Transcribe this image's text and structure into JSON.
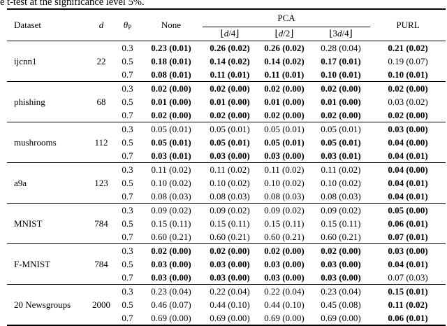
{
  "caption": "e t-test at the significance level 5%.",
  "table": {
    "headers": {
      "dataset": "Dataset",
      "d": "d",
      "theta": {
        "symbol": "θ",
        "sub": "P"
      },
      "none": "None",
      "pca": "PCA",
      "pca_sub": [
        {
          "pre": "⌊",
          "var": "d",
          "post": "/4⌋"
        },
        {
          "pre": "⌊",
          "var": "d",
          "post": "/2⌋"
        },
        {
          "pre": "⌊3",
          "var": "d",
          "post": "/4⌋"
        }
      ],
      "purl": "PURL"
    },
    "column_semantics": [
      "cell-none",
      "cell-pca-d4",
      "cell-pca-d2",
      "cell-pca-3d4",
      "cell-purl"
    ],
    "groups": [
      {
        "dataset": "ijcnn1",
        "d": "22",
        "rows": [
          {
            "theta": "0.3",
            "cells": [
              [
                "0.23 (0.01)",
                1
              ],
              [
                "0.26 (0.02)",
                1
              ],
              [
                "0.26 (0.02)",
                1
              ],
              [
                "0.28 (0.04)",
                0
              ],
              [
                "0.21 (0.02)",
                1
              ]
            ]
          },
          {
            "theta": "0.5",
            "cells": [
              [
                "0.18 (0.01)",
                1
              ],
              [
                "0.14 (0.02)",
                1
              ],
              [
                "0.14 (0.02)",
                1
              ],
              [
                "0.17 (0.01)",
                1
              ],
              [
                "0.19 (0.07)",
                0
              ]
            ]
          },
          {
            "theta": "0.7",
            "cells": [
              [
                "0.08 (0.01)",
                1
              ],
              [
                "0.11 (0.01)",
                1
              ],
              [
                "0.11 (0.01)",
                1
              ],
              [
                "0.10 (0.01)",
                1
              ],
              [
                "0.10 (0.01)",
                1
              ]
            ]
          }
        ]
      },
      {
        "dataset": "phishing",
        "d": "68",
        "rows": [
          {
            "theta": "0.3",
            "cells": [
              [
                "0.02 (0.00)",
                1
              ],
              [
                "0.02 (0.00)",
                1
              ],
              [
                "0.02 (0.00)",
                1
              ],
              [
                "0.02 (0.00)",
                1
              ],
              [
                "0.02 (0.00)",
                1
              ]
            ]
          },
          {
            "theta": "0.5",
            "cells": [
              [
                "0.01 (0.00)",
                1
              ],
              [
                "0.01 (0.00)",
                1
              ],
              [
                "0.01 (0.00)",
                1
              ],
              [
                "0.01 (0.00)",
                1
              ],
              [
                "0.03 (0.02)",
                0
              ]
            ]
          },
          {
            "theta": "0.7",
            "cells": [
              [
                "0.02 (0.00)",
                1
              ],
              [
                "0.02 (0.00)",
                1
              ],
              [
                "0.02 (0.00)",
                1
              ],
              [
                "0.02 (0.00)",
                1
              ],
              [
                "0.02 (0.00)",
                1
              ]
            ]
          }
        ]
      },
      {
        "dataset": "mushrooms",
        "d": "112",
        "rows": [
          {
            "theta": "0.3",
            "cells": [
              [
                "0.05 (0.01)",
                0
              ],
              [
                "0.05 (0.01)",
                0
              ],
              [
                "0.05 (0.01)",
                0
              ],
              [
                "0.05 (0.01)",
                0
              ],
              [
                "0.03 (0.00)",
                1
              ]
            ]
          },
          {
            "theta": "0.5",
            "cells": [
              [
                "0.05 (0.01)",
                1
              ],
              [
                "0.05 (0.01)",
                1
              ],
              [
                "0.05 (0.01)",
                1
              ],
              [
                "0.05 (0.01)",
                1
              ],
              [
                "0.04 (0.00)",
                1
              ]
            ]
          },
          {
            "theta": "0.7",
            "cells": [
              [
                "0.03 (0.01)",
                1
              ],
              [
                "0.03 (0.00)",
                1
              ],
              [
                "0.03 (0.00)",
                1
              ],
              [
                "0.03 (0.01)",
                1
              ],
              [
                "0.04 (0.01)",
                1
              ]
            ]
          }
        ]
      },
      {
        "dataset": "a9a",
        "d": "123",
        "rows": [
          {
            "theta": "0.3",
            "cells": [
              [
                "0.11 (0.02)",
                0
              ],
              [
                "0.11 (0.02)",
                0
              ],
              [
                "0.11 (0.02)",
                0
              ],
              [
                "0.11 (0.02)",
                0
              ],
              [
                "0.04 (0.00)",
                1
              ]
            ]
          },
          {
            "theta": "0.5",
            "cells": [
              [
                "0.10 (0.02)",
                0
              ],
              [
                "0.10 (0.02)",
                0
              ],
              [
                "0.10 (0.02)",
                0
              ],
              [
                "0.10 (0.02)",
                0
              ],
              [
                "0.04 (0.01)",
                1
              ]
            ]
          },
          {
            "theta": "0.7",
            "cells": [
              [
                "0.08 (0.03)",
                0
              ],
              [
                "0.08 (0.03)",
                0
              ],
              [
                "0.08 (0.03)",
                0
              ],
              [
                "0.08 (0.03)",
                0
              ],
              [
                "0.04 (0.01)",
                1
              ]
            ]
          }
        ]
      },
      {
        "dataset": "MNIST",
        "d": "784",
        "rows": [
          {
            "theta": "0.3",
            "cells": [
              [
                "0.09 (0.02)",
                0
              ],
              [
                "0.09 (0.02)",
                0
              ],
              [
                "0.09 (0.02)",
                0
              ],
              [
                "0.09 (0.02)",
                0
              ],
              [
                "0.05 (0.00)",
                1
              ]
            ]
          },
          {
            "theta": "0.5",
            "cells": [
              [
                "0.15 (0.11)",
                0
              ],
              [
                "0.15 (0.11)",
                0
              ],
              [
                "0.15 (0.11)",
                0
              ],
              [
                "0.15 (0.11)",
                0
              ],
              [
                "0.06 (0.01)",
                1
              ]
            ]
          },
          {
            "theta": "0.7",
            "cells": [
              [
                "0.60 (0.21)",
                0
              ],
              [
                "0.60 (0.21)",
                0
              ],
              [
                "0.60 (0.21)",
                0
              ],
              [
                "0.60 (0.21)",
                0
              ],
              [
                "0.07 (0.01)",
                1
              ]
            ]
          }
        ]
      },
      {
        "dataset": "F-MNIST",
        "d": "784",
        "rows": [
          {
            "theta": "0.3",
            "cells": [
              [
                "0.02 (0.00)",
                1
              ],
              [
                "0.02 (0.00)",
                1
              ],
              [
                "0.02 (0.00)",
                1
              ],
              [
                "0.02 (0.00)",
                1
              ],
              [
                "0.03 (0.00)",
                1
              ]
            ]
          },
          {
            "theta": "0.5",
            "cells": [
              [
                "0.03 (0.00)",
                1
              ],
              [
                "0.03 (0.00)",
                1
              ],
              [
                "0.03 (0.00)",
                1
              ],
              [
                "0.03 (0.00)",
                1
              ],
              [
                "0.04 (0.01)",
                1
              ]
            ]
          },
          {
            "theta": "0.7",
            "cells": [
              [
                "0.03 (0.00)",
                1
              ],
              [
                "0.03 (0.00)",
                1
              ],
              [
                "0.03 (0.00)",
                1
              ],
              [
                "0.03 (0.00)",
                1
              ],
              [
                "0.07 (0.03)",
                0
              ]
            ]
          }
        ]
      },
      {
        "dataset": "20 Newsgroups",
        "d": "2000",
        "rows": [
          {
            "theta": "0.3",
            "cells": [
              [
                "0.23 (0.04)",
                0
              ],
              [
                "0.22 (0.04)",
                0
              ],
              [
                "0.22 (0.04)",
                0
              ],
              [
                "0.23 (0.04)",
                0
              ],
              [
                "0.15 (0.01)",
                1
              ]
            ]
          },
          {
            "theta": "0.5",
            "cells": [
              [
                "0.46 (0.07)",
                0
              ],
              [
                "0.44 (0.10)",
                0
              ],
              [
                "0.44 (0.10)",
                0
              ],
              [
                "0.45 (0.08)",
                0
              ],
              [
                "0.11 (0.02)",
                1
              ]
            ]
          },
          {
            "theta": "0.7",
            "cells": [
              [
                "0.69 (0.00)",
                0
              ],
              [
                "0.69 (0.00)",
                0
              ],
              [
                "0.69 (0.00)",
                0
              ],
              [
                "0.69 (0.00)",
                0
              ],
              [
                "0.06 (0.01)",
                1
              ]
            ]
          }
        ]
      }
    ]
  }
}
